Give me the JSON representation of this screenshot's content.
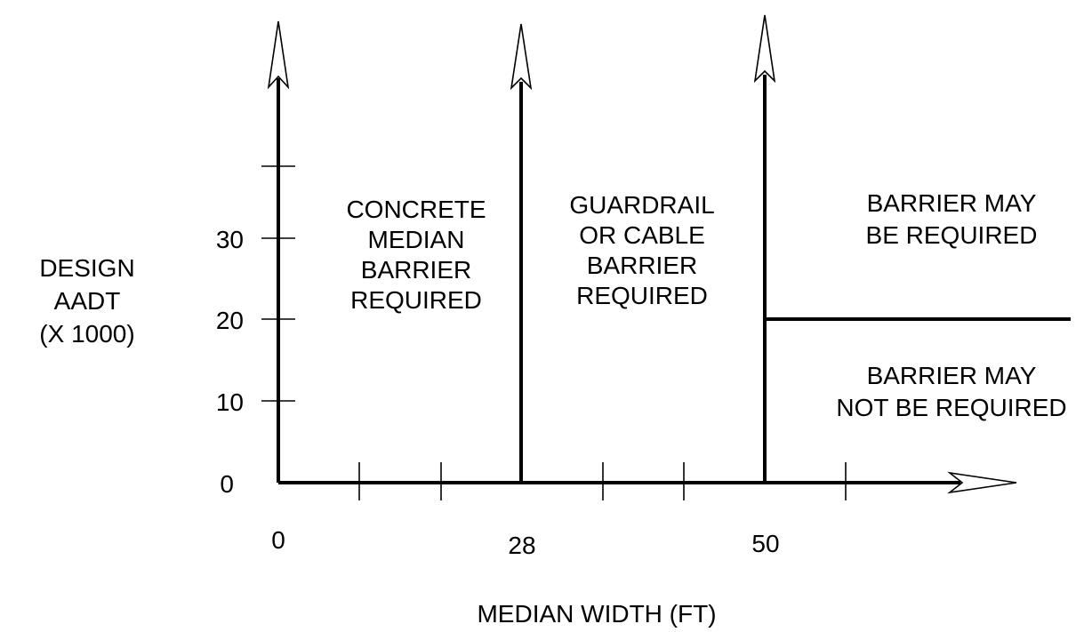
{
  "colors": {
    "ink": "#000000",
    "background": "#ffffff"
  },
  "axes": {
    "y_title": [
      "DESIGN",
      "AADT",
      "(X 1000)"
    ],
    "x_title": "MEDIAN WIDTH (FT)",
    "y_ticks": [
      "0",
      "10",
      "20",
      "30"
    ],
    "x_ticks": [
      "0",
      "28",
      "50"
    ]
  },
  "zones": {
    "concrete": [
      "CONCRETE",
      "MEDIAN",
      "BARRIER",
      "REQUIRED"
    ],
    "guardrail": [
      "GUARDRAIL",
      "OR CABLE",
      "BARRIER",
      "REQUIRED"
    ],
    "may_be": [
      "BARRIER MAY",
      "BE REQUIRED"
    ],
    "may_not": [
      "BARRIER MAY",
      "NOT BE REQUIRED"
    ]
  },
  "thresholds": {
    "width_1_ft": 28,
    "width_2_ft": 50,
    "aadt_thousands": 20
  }
}
